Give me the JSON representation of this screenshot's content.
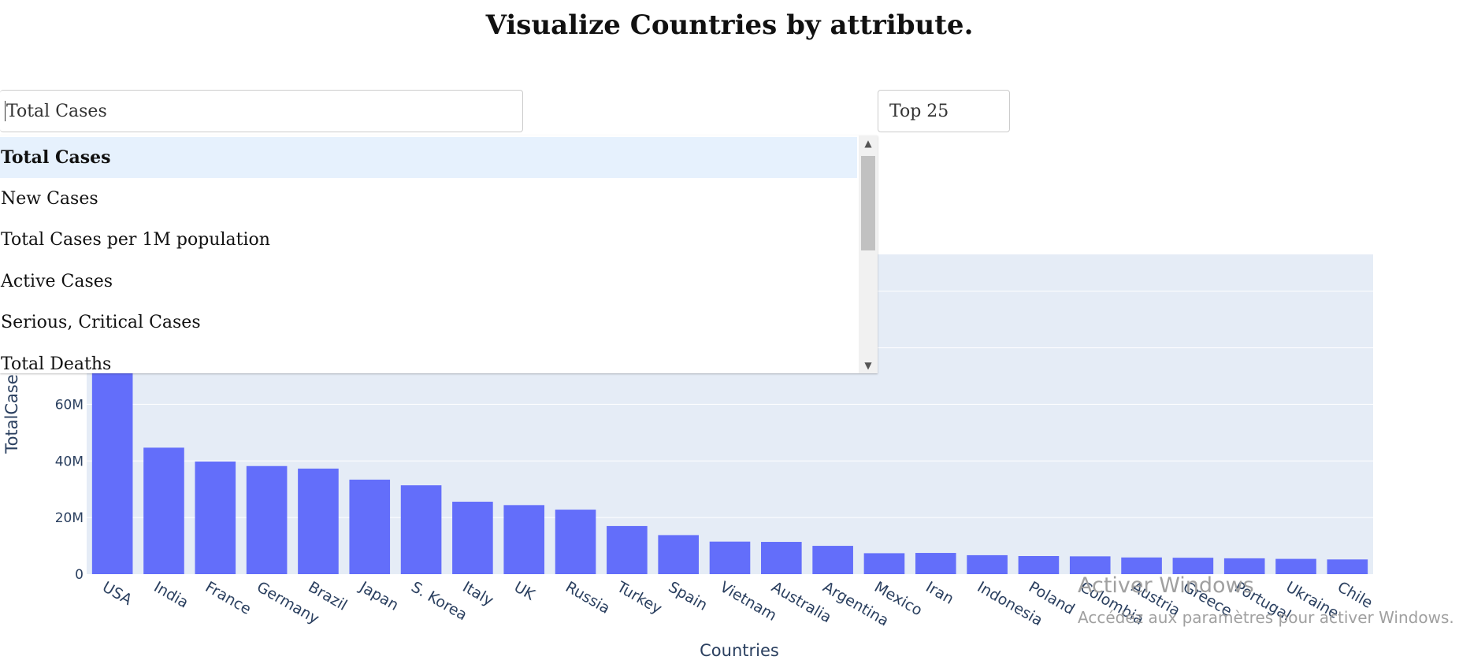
{
  "page": {
    "title": "Visualize Countries by attribute."
  },
  "controls": {
    "attribute_value": "Total Cases",
    "top_value": "Top 25",
    "attribute_options": [
      "Total Cases",
      "New Cases",
      "Total Cases per 1M population",
      "Active Cases",
      "Serious, Critical Cases",
      "Total Deaths"
    ],
    "selected_index": 0
  },
  "chart_data": {
    "type": "bar",
    "categories": [
      "USA",
      "India",
      "France",
      "Germany",
      "Brazil",
      "Japan",
      "S. Korea",
      "Italy",
      "UK",
      "Russia",
      "Turkey",
      "Spain",
      "Vietnam",
      "Australia",
      "Argentina",
      "Mexico",
      "Iran",
      "Indonesia",
      "Poland",
      "Colombia",
      "Austria",
      "Greece",
      "Portugal",
      "Ukraine",
      "Chile"
    ],
    "values": [
      103,
      44.7,
      39.8,
      38.2,
      37.3,
      33.4,
      31.4,
      25.6,
      24.4,
      22.8,
      17.0,
      13.8,
      11.5,
      11.4,
      10.0,
      7.4,
      7.5,
      6.7,
      6.4,
      6.3,
      5.9,
      5.8,
      5.6,
      5.4,
      5.2
    ],
    "value_unit": "M",
    "xlabel": "Countries",
    "ylabel": "TotalCases",
    "yticks": [
      0,
      20,
      40,
      60
    ],
    "ytick_labels": [
      "0",
      "20M",
      "40M",
      "60M"
    ],
    "ylim": [
      0,
      113
    ],
    "grid": true,
    "colors": {
      "bar": "#636efa",
      "plot_bg": "#e5ecf6",
      "grid": "#ffffff",
      "axis_text": "#2a3f5f"
    }
  },
  "watermark": {
    "line1": "Activer Windows",
    "line2": "Accédez aux paramètres pour activer Windows."
  }
}
